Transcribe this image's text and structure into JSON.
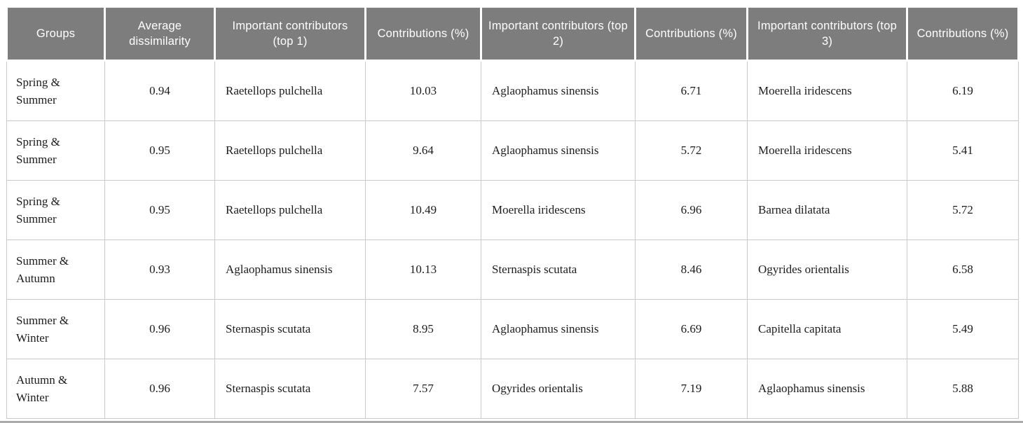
{
  "table": {
    "columns": [
      "Groups",
      "Average dissimilarity",
      "Important contributors (top 1)",
      "Contributions (%)",
      "Important contributors (top 2)",
      "Contributions (%)",
      "Important contributors (top 3)",
      "Contributions (%)"
    ],
    "rows": [
      {
        "group": "Spring & Summer",
        "average_dissimilarity": "0.94",
        "top1": "Raetellops pulchella",
        "top1_pct": "10.03",
        "top2": "Aglaophamus sinensis",
        "top2_pct": "6.71",
        "top3": "Moerella iridescens",
        "top3_pct": "6.19"
      },
      {
        "group": "Spring & Summer",
        "average_dissimilarity": "0.95",
        "top1": "Raetellops pulchella",
        "top1_pct": "9.64",
        "top2": "Aglaophamus sinensis",
        "top2_pct": "5.72",
        "top3": "Moerella iridescens",
        "top3_pct": "5.41"
      },
      {
        "group": "Spring & Summer",
        "average_dissimilarity": "0.95",
        "top1": "Raetellops pulchella",
        "top1_pct": "10.49",
        "top2": "Moerella iridescens",
        "top2_pct": "6.96",
        "top3": "Barnea dilatata",
        "top3_pct": "5.72"
      },
      {
        "group": "Summer & Autumn",
        "average_dissimilarity": "0.93",
        "top1": "Aglaophamus sinensis",
        "top1_pct": "10.13",
        "top2": "Sternaspis scutata",
        "top2_pct": "8.46",
        "top3": "Ogyrides orientalis",
        "top3_pct": "6.58"
      },
      {
        "group": "Summer & Winter",
        "average_dissimilarity": "0.96",
        "top1": "Sternaspis scutata",
        "top1_pct": "8.95",
        "top2": "Aglaophamus sinensis",
        "top2_pct": "6.69",
        "top3": "Capitella capitata",
        "top3_pct": "5.49"
      },
      {
        "group": "Autumn & Winter",
        "average_dissimilarity": "0.96",
        "top1": "Sternaspis scutata",
        "top1_pct": "7.57",
        "top2": "Ogyrides orientalis",
        "top2_pct": "7.19",
        "top3": "Aglaophamus sinensis",
        "top3_pct": "5.88"
      }
    ]
  },
  "colors": {
    "header_bg": "#7d7d7d",
    "header_text": "#ffffff",
    "body_border": "#c9c9c9",
    "body_text": "#1c1c1c",
    "bottom_rule": "#ababab"
  }
}
